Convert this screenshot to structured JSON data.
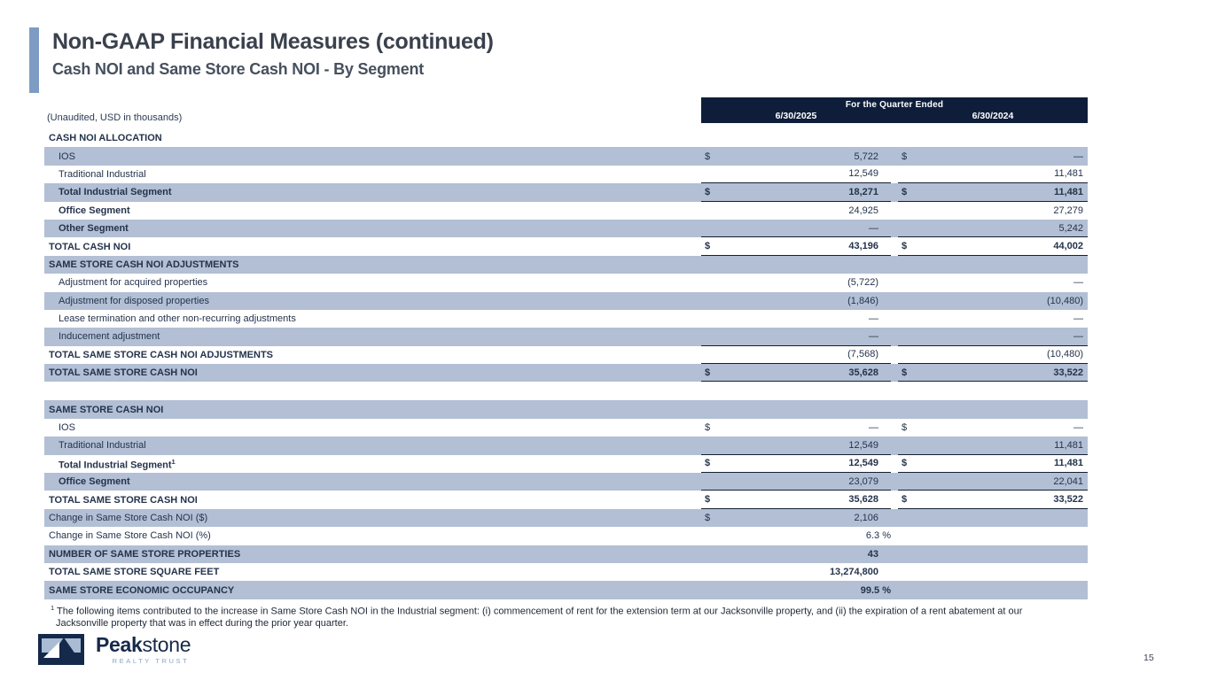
{
  "page": {
    "title": "Non-GAAP Financial Measures (continued)",
    "subtitle": "Cash NOI and Same Store Cash NOI - By Segment",
    "unaudited_note": "(Unaudited, USD in thousands)",
    "page_number": "15"
  },
  "colors": {
    "stripe": "#b2bfd4",
    "header_bar": "#0e1e3a",
    "accent_bar": "#7e9cc3",
    "rule": "#141f31",
    "logo_navy": "#15294a",
    "logo_light_blue": "#a9bcd4"
  },
  "table": {
    "header": {
      "group_label": "For the Quarter Ended",
      "col1": "6/30/2025",
      "col2": "6/30/2024"
    },
    "rows": [
      {
        "label": "CASH NOI ALLOCATION",
        "bold": true
      },
      {
        "label": "IOS",
        "indent": true,
        "shade": true,
        "d1": "$",
        "v1": "5,722",
        "d2": "$",
        "v2": "—"
      },
      {
        "label": "Traditional Industrial",
        "indent": true,
        "v1": "12,549",
        "v2": "11,481",
        "b": "s"
      },
      {
        "label": "Total Industrial Segment",
        "indent": true,
        "shade": true,
        "bold": true,
        "vbold": true,
        "d1": "$",
        "v1": "18,271",
        "d2": "$",
        "v2": "11,481",
        "b": "s"
      },
      {
        "label": "Office Segment",
        "indent": true,
        "bold": true,
        "v1": "24,925",
        "v2": "27,279"
      },
      {
        "label": "Other Segment",
        "indent": true,
        "shade": true,
        "bold": true,
        "v1": "—",
        "v2": "5,242",
        "b": "s"
      },
      {
        "label": "TOTAL CASH NOI",
        "bold": true,
        "vbold": true,
        "d1": "$",
        "v1": "43,196",
        "d2": "$",
        "v2": "44,002",
        "b": "d"
      },
      {
        "label": "SAME STORE CASH NOI ADJUSTMENTS",
        "shade": true,
        "bold": true
      },
      {
        "label": "Adjustment for acquired properties",
        "indent": true,
        "v1": "(5,722)",
        "v2": "—"
      },
      {
        "label": "Adjustment for disposed properties",
        "indent": true,
        "shade": true,
        "v1": "(1,846)",
        "v2": "(10,480)"
      },
      {
        "label": "Lease termination and other non-recurring adjustments",
        "indent": true,
        "v1": "—",
        "v2": "—"
      },
      {
        "label": "Inducement adjustment",
        "indent": true,
        "shade": true,
        "v1": "—",
        "v2": "—",
        "b": "s"
      },
      {
        "label": "TOTAL SAME STORE CASH NOI ADJUSTMENTS",
        "bold": true,
        "v1": "(7,568)",
        "v2": "(10,480)",
        "b": "s"
      },
      {
        "label": "TOTAL SAME STORE CASH NOI",
        "shade": true,
        "bold": true,
        "vbold": true,
        "d1": "$",
        "v1": "35,628",
        "d2": "$",
        "v2": "33,522",
        "b": "d"
      },
      {
        "gap": true
      },
      {
        "label": "SAME STORE CASH NOI",
        "shade": true,
        "bold": true
      },
      {
        "label": "IOS",
        "indent": true,
        "d1": "$",
        "v1": "—",
        "d2": "$",
        "v2": "—"
      },
      {
        "label": "Traditional Industrial",
        "indent": true,
        "shade": true,
        "v1": "12,549",
        "v2": "11,481",
        "b": "s"
      },
      {
        "label": "Total Industrial Segment",
        "sup": "1",
        "indent": true,
        "bold": true,
        "vbold": true,
        "d1": "$",
        "v1": "12,549",
        "d2": "$",
        "v2": "11,481",
        "b": "s"
      },
      {
        "label": "Office Segment",
        "indent": true,
        "shade": true,
        "bold": true,
        "v1": "23,079",
        "v2": "22,041",
        "b": "s"
      },
      {
        "label": "TOTAL SAME STORE CASH NOI",
        "bold": true,
        "vbold": true,
        "d1": "$",
        "v1": "35,628",
        "d2": "$",
        "v2": "33,522",
        "b": "d"
      },
      {
        "label": "Change in Same Store Cash NOI ($)",
        "shade": true,
        "d1": "$",
        "v1": "2,106"
      },
      {
        "label": "Change in Same Store Cash NOI (%)",
        "v1": "6.3 %",
        "pct": true
      },
      {
        "label": "NUMBER OF SAME STORE PROPERTIES",
        "shade": true,
        "bold": true,
        "vbold": true,
        "v1": "43"
      },
      {
        "label": "TOTAL SAME STORE SQUARE FEET",
        "bold": true,
        "vbold": true,
        "v1": "13,274,800"
      },
      {
        "label": "SAME STORE ECONOMIC OCCUPANCY",
        "shade": true,
        "bold": true,
        "vbold": true,
        "v1": "99.5 %",
        "pct": true
      }
    ]
  },
  "footnote": {
    "marker": "1",
    "text": " The following items contributed to the increase in Same Store Cash NOI in the Industrial segment: (i) commencement of rent for the extension term at our Jacksonville property, and (ii) the expiration of a rent abatement at our Jacksonville property that was in effect during the prior year quarter."
  },
  "logo": {
    "name_bold": "Peak",
    "name_light": "stone",
    "tagline": "REALTY TRUST"
  }
}
